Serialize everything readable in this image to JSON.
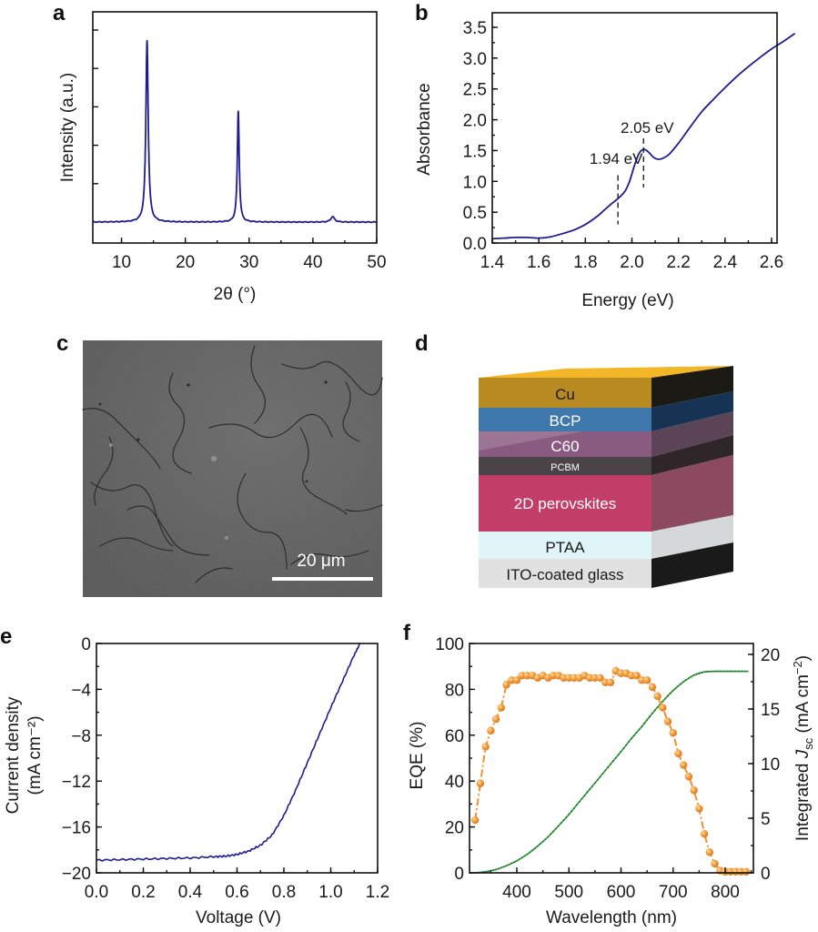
{
  "panels": {
    "a": {
      "label": "a"
    },
    "b": {
      "label": "b"
    },
    "c": {
      "label": "c",
      "scale_bar": "20 μm",
      "image_desc": "SEM micrograph of 2D perovskite film surface"
    },
    "d": {
      "label": "d",
      "layers": [
        {
          "name": "Cu",
          "color": "#b8860b"
        },
        {
          "name": "BCP",
          "color": "#3f78ad"
        },
        {
          "name": "C60",
          "color": "#8a5b80"
        },
        {
          "name": "PCBM",
          "color": "#4a4347"
        },
        {
          "name": "2D perovskites",
          "color": "#c23d68"
        },
        {
          "name": "PTAA",
          "color": "#dff5f7"
        },
        {
          "name": "ITO-coated glass",
          "color": "#e1e1e1"
        }
      ]
    },
    "e": {
      "label": "e"
    },
    "f": {
      "label": "f"
    }
  },
  "chart_data": [
    {
      "id": "a",
      "type": "line",
      "title": "",
      "xlabel": "2θ (°)",
      "ylabel": "Intensity (a.u.)",
      "xlim": [
        5.5,
        50
      ],
      "ylim": [
        0,
        1.2
      ],
      "xticks": [
        10,
        20,
        30,
        40,
        50
      ],
      "xtick_labels": [
        "10",
        "20",
        "30",
        "40",
        "50"
      ],
      "y_minor_tick_count": 5,
      "line_color": "#1d1d8f",
      "peaks": [
        {
          "x": 14.0,
          "height": 1.0,
          "width": 0.22
        },
        {
          "x": 28.3,
          "height": 0.61,
          "width": 0.18
        },
        {
          "x": 43.1,
          "height": 0.03,
          "width": 0.35
        }
      ],
      "baseline": 0.05,
      "grid": false
    },
    {
      "id": "b",
      "type": "line",
      "title": "",
      "xlabel": "Energy (eV)",
      "ylabel": "Absorbance",
      "xlim": [
        1.4,
        2.7
      ],
      "ylim": [
        0,
        3.7
      ],
      "xticks": [
        1.4,
        1.6,
        1.8,
        2.0,
        2.2,
        2.4,
        2.6
      ],
      "xtick_labels": [
        "1.4",
        "1.6",
        "1.8",
        "2.0",
        "2.2",
        "2.4",
        "2.6"
      ],
      "yticks": [
        0,
        0.5,
        1.0,
        1.5,
        2.0,
        2.5,
        3.0,
        3.5
      ],
      "ytick_labels": [
        "0.0",
        "0.5",
        "1.0",
        "1.5",
        "2.0",
        "2.5",
        "3.0",
        "3.5"
      ],
      "line_color": "#1d1d8f",
      "x": [
        1.4,
        1.45,
        1.5,
        1.55,
        1.6,
        1.65,
        1.7,
        1.75,
        1.8,
        1.85,
        1.88,
        1.91,
        1.94,
        1.97,
        1.99,
        2.01,
        2.03,
        2.05,
        2.07,
        2.09,
        2.11,
        2.13,
        2.16,
        2.2,
        2.25,
        2.3,
        2.35,
        2.4,
        2.45,
        2.5,
        2.55,
        2.6,
        2.65,
        2.7
      ],
      "y": [
        0.07,
        0.08,
        0.09,
        0.09,
        0.08,
        0.1,
        0.15,
        0.21,
        0.3,
        0.43,
        0.53,
        0.63,
        0.72,
        0.84,
        1.0,
        1.25,
        1.45,
        1.52,
        1.48,
        1.4,
        1.36,
        1.37,
        1.44,
        1.62,
        1.88,
        2.13,
        2.33,
        2.52,
        2.7,
        2.86,
        3.01,
        3.15,
        3.27,
        3.4
      ],
      "annotations": [
        {
          "text": "1.94 eV",
          "x": 1.94,
          "marker_range": [
            0.3,
            1.1
          ]
        },
        {
          "text": "2.05 eV",
          "x": 2.05,
          "marker_range": [
            0.9,
            1.7
          ]
        }
      ],
      "grid": false
    },
    {
      "id": "e",
      "type": "line",
      "title": "",
      "xlabel": "Voltage (V)",
      "ylabel": "Current density",
      "ylabel_units": "(mA cm⁻²)",
      "xlim": [
        0,
        1.2
      ],
      "ylim": [
        -20,
        0
      ],
      "xticks": [
        0,
        0.2,
        0.4,
        0.6,
        0.8,
        1.0,
        1.2
      ],
      "xtick_labels": [
        "0.0",
        "0.2",
        "0.4",
        "0.6",
        "0.8",
        "1.0",
        "1.2"
      ],
      "yticks": [
        0,
        -4,
        -8,
        -12,
        -16,
        -20
      ],
      "ytick_labels": [
        "0",
        "−4",
        "−8",
        "−12",
        "−16",
        "−20"
      ],
      "line_color": "#1d1d8f",
      "x": [
        0.0,
        0.1,
        0.2,
        0.3,
        0.4,
        0.5,
        0.55,
        0.6,
        0.65,
        0.7,
        0.75,
        0.8,
        0.85,
        0.9,
        0.95,
        1.0,
        1.05,
        1.1,
        1.125
      ],
      "y": [
        -18.9,
        -18.85,
        -18.8,
        -18.75,
        -18.7,
        -18.6,
        -18.55,
        -18.4,
        -18.1,
        -17.6,
        -16.7,
        -15.0,
        -12.8,
        -10.4,
        -8.0,
        -5.6,
        -3.3,
        -1.0,
        0.0
      ],
      "grid": false
    },
    {
      "id": "f",
      "type": "line",
      "title": "",
      "xlabel": "Wavelength (nm)",
      "ylabel": "EQE (%)",
      "ylabel_right": "Integrated J_sc (mA cm⁻²)",
      "xlim": [
        316,
        845
      ],
      "ylim": [
        0,
        100
      ],
      "ylim_right": [
        0,
        21
      ],
      "xticks": [
        400,
        500,
        600,
        700,
        800
      ],
      "xtick_labels": [
        "400",
        "500",
        "600",
        "700",
        "800"
      ],
      "yticks": [
        0,
        20,
        40,
        60,
        80,
        100
      ],
      "ytick_labels": [
        "0",
        "20",
        "40",
        "60",
        "80",
        "100"
      ],
      "yticks_right": [
        0,
        5,
        10,
        15,
        20
      ],
      "ytick_labels_right": [
        "0",
        "5",
        "10",
        "15",
        "20"
      ],
      "series": [
        {
          "name": "EQE",
          "axis": "left",
          "color": "#f0902a",
          "marker": "circle",
          "x": [
            320,
            330,
            340,
            350,
            360,
            370,
            380,
            390,
            400,
            410,
            420,
            430,
            440,
            450,
            460,
            470,
            480,
            490,
            500,
            510,
            520,
            530,
            540,
            550,
            560,
            570,
            580,
            590,
            600,
            610,
            620,
            630,
            640,
            650,
            660,
            670,
            680,
            690,
            700,
            710,
            720,
            730,
            740,
            750,
            760,
            770,
            780,
            790,
            800,
            810,
            820,
            830,
            840
          ],
          "y": [
            23,
            39,
            55,
            62,
            67,
            72,
            82,
            84,
            84,
            86,
            86,
            86,
            85,
            86,
            85,
            86,
            86,
            85,
            85,
            85,
            85,
            86,
            85,
            85,
            85,
            83,
            83,
            88,
            87,
            87,
            86,
            86,
            84,
            84,
            81,
            77,
            72,
            66,
            61,
            52,
            47,
            42,
            36,
            28,
            17,
            9,
            4,
            1,
            0.5,
            0.5,
            0.5,
            0.5,
            0.5
          ]
        },
        {
          "name": "Integrated J_sc",
          "axis": "right",
          "color": "#2e9a38",
          "marker": "small-dot",
          "x": [
            320,
            340,
            360,
            380,
            400,
            420,
            440,
            460,
            480,
            500,
            520,
            540,
            560,
            580,
            600,
            620,
            640,
            660,
            680,
            700,
            720,
            740,
            760,
            780,
            800,
            820,
            845
          ],
          "y": [
            0,
            0.1,
            0.3,
            0.65,
            1.1,
            1.7,
            2.45,
            3.3,
            4.3,
            5.35,
            6.5,
            7.65,
            8.8,
            9.95,
            11.1,
            12.3,
            13.4,
            14.6,
            15.7,
            16.7,
            17.5,
            18.1,
            18.4,
            18.45,
            18.45,
            18.45,
            18.45
          ]
        }
      ],
      "grid": false
    }
  ]
}
